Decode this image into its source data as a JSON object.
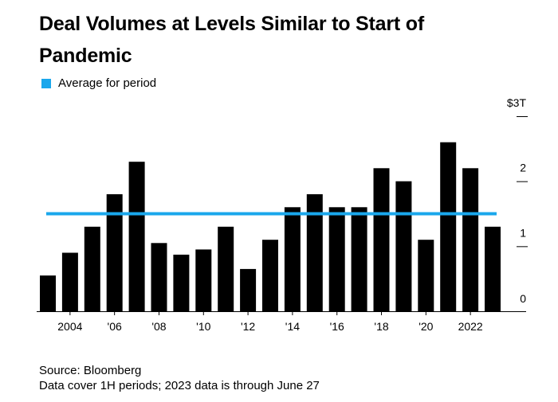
{
  "title": "Deal Volumes at Levels Similar to Start of Pandemic",
  "legend": {
    "label": "Average for period",
    "color": "#1aa7ec"
  },
  "source": "Source: Bloomberg",
  "note": "Data cover 1H periods; 2023 data is through June 27",
  "chart_data": {
    "type": "bar",
    "categories": [
      2003,
      2004,
      2005,
      2006,
      2007,
      2008,
      2009,
      2010,
      2011,
      2012,
      2013,
      2014,
      2015,
      2016,
      2017,
      2018,
      2019,
      2020,
      2021,
      2022,
      2023
    ],
    "values": [
      0.55,
      0.9,
      1.3,
      1.8,
      2.3,
      1.05,
      0.87,
      0.95,
      1.3,
      0.65,
      1.1,
      1.6,
      1.8,
      1.6,
      1.6,
      2.2,
      2.0,
      1.1,
      2.6,
      2.2,
      1.3
    ],
    "average": 1.5,
    "bar_color": "#000000",
    "ylim": [
      0,
      3
    ],
    "yticks": [
      0,
      1,
      2,
      3
    ],
    "ytick_labels": [
      "0",
      "1",
      "2",
      "$3T"
    ],
    "xtick_labels": [
      {
        "at": 2004,
        "label": "2004"
      },
      {
        "at": 2006,
        "label": "'06"
      },
      {
        "at": 2008,
        "label": "'08"
      },
      {
        "at": 2010,
        "label": "'10"
      },
      {
        "at": 2012,
        "label": "'12"
      },
      {
        "at": 2014,
        "label": "'14"
      },
      {
        "at": 2016,
        "label": "'16"
      },
      {
        "at": 2018,
        "label": "'18"
      },
      {
        "at": 2020,
        "label": "'20"
      },
      {
        "at": 2022,
        "label": "2022"
      }
    ],
    "grid": false,
    "legend_position": "top-left"
  }
}
